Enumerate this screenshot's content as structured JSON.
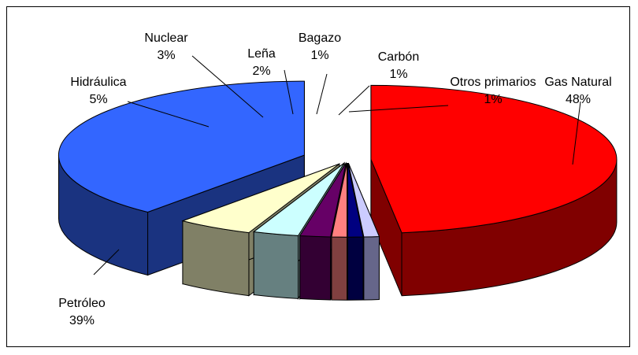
{
  "chart_data": {
    "type": "pie",
    "style": "3d-exploded",
    "legend": "none",
    "slices": [
      {
        "name": "Gas Natural",
        "value": 48,
        "label": "48%",
        "top": "#ff0000",
        "side": "#800000"
      },
      {
        "name": "Otros primarios",
        "value": 1,
        "label": "1%",
        "top": "#ccccff",
        "side": "#66668a"
      },
      {
        "name": "Carbón",
        "value": 1,
        "label": "1%",
        "top": "#000080",
        "side": "#000040"
      },
      {
        "name": "Bagazo",
        "value": 1,
        "label": "1%",
        "top": "#ff8080",
        "side": "#804040"
      },
      {
        "name": "Leña",
        "value": 2,
        "label": "2%",
        "top": "#660066",
        "side": "#330033"
      },
      {
        "name": "Nuclear",
        "value": 3,
        "label": "3%",
        "top": "#ccffff",
        "side": "#668080"
      },
      {
        "name": "Hidráulica",
        "value": 5,
        "label": "5%",
        "top": "#ffffcc",
        "side": "#808066"
      },
      {
        "name": "Petróleo",
        "value": 39,
        "label": "39%",
        "top": "#3366ff",
        "side": "#1a3380"
      }
    ]
  }
}
